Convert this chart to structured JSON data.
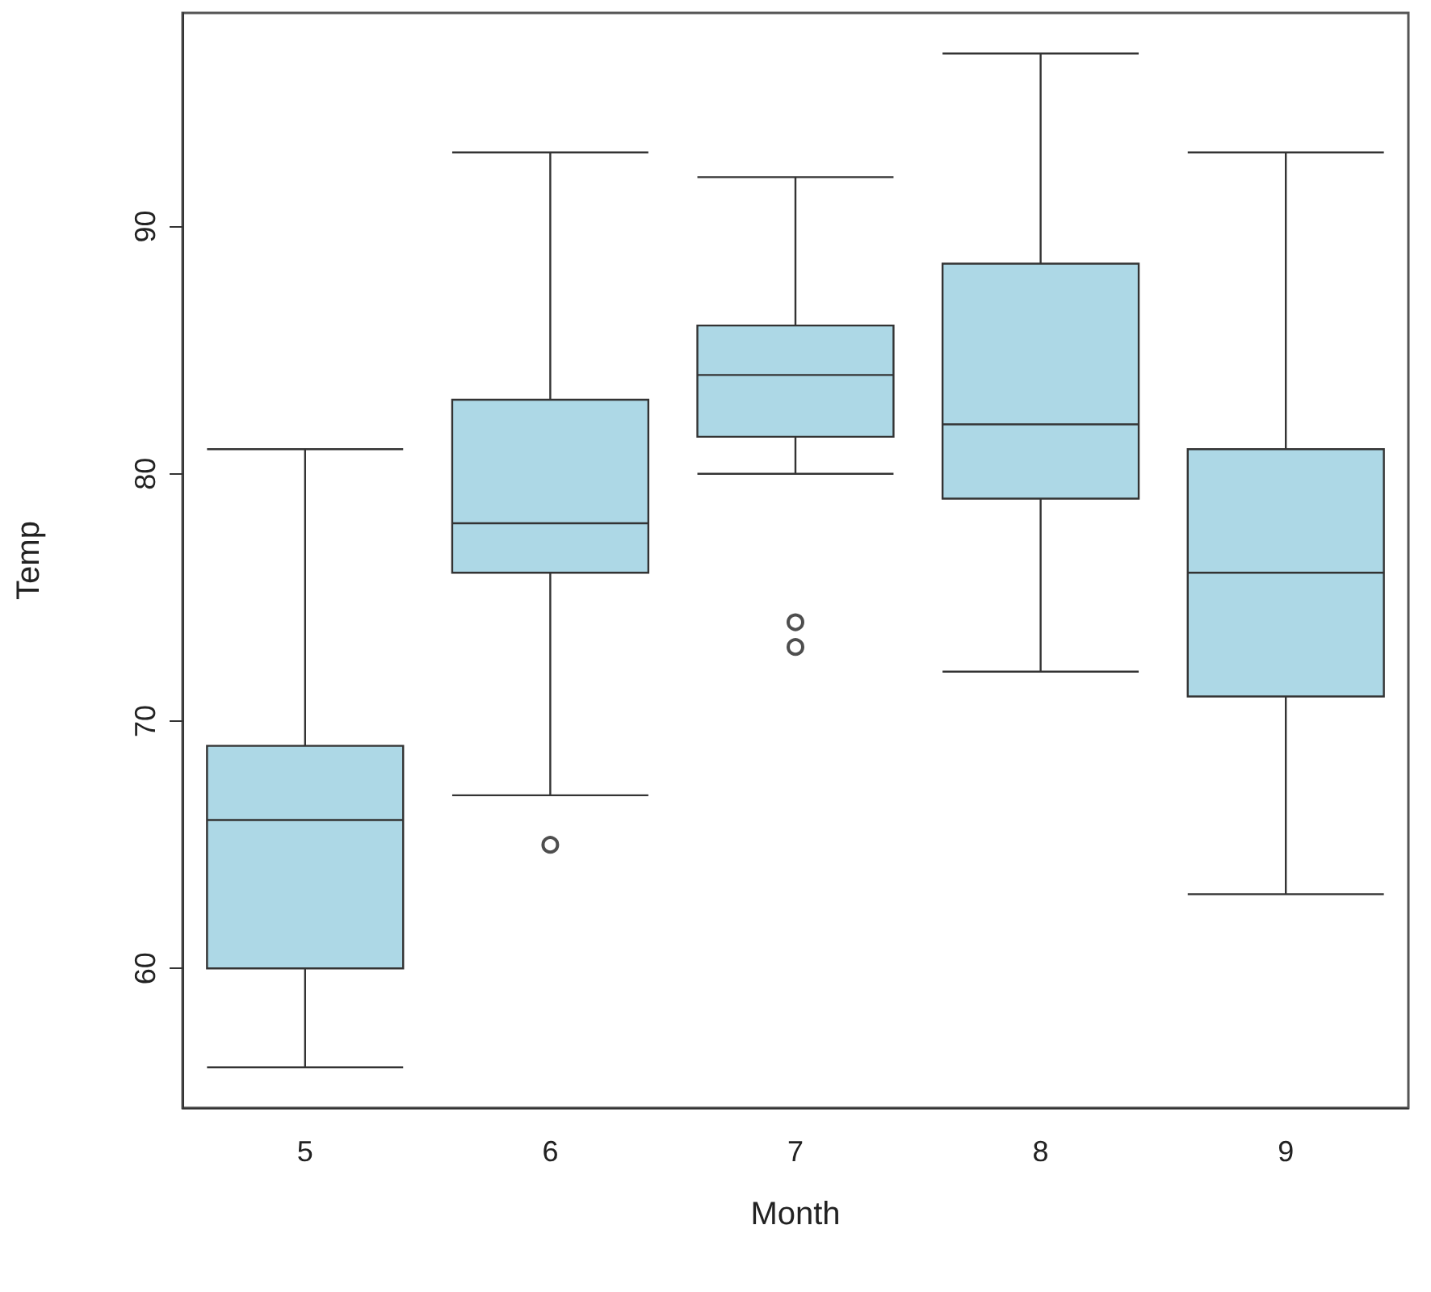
{
  "chart_data": {
    "type": "box",
    "xlabel": "Month",
    "ylabel": "Temp",
    "categories": [
      "5",
      "6",
      "7",
      "8",
      "9"
    ],
    "color": "#add8e6",
    "ylim": [
      54.36,
      98.64
    ],
    "yticks": [
      60,
      70,
      80,
      90
    ],
    "boxes": [
      {
        "low": 56,
        "q1": 60,
        "median": 66,
        "q3": 69,
        "high": 81
      },
      {
        "low": 67,
        "q1": 76,
        "median": 78,
        "q3": 83,
        "high": 93,
        "outliers": [
          65
        ]
      },
      {
        "low": 80,
        "q1": 81.5,
        "median": 84,
        "q3": 86,
        "high": 92,
        "outliers": [
          73,
          74
        ]
      },
      {
        "low": 72,
        "q1": 79,
        "median": 82,
        "q3": 88.5,
        "high": 97
      },
      {
        "low": 63,
        "q1": 71,
        "median": 76,
        "q3": 81,
        "high": 93
      }
    ]
  }
}
